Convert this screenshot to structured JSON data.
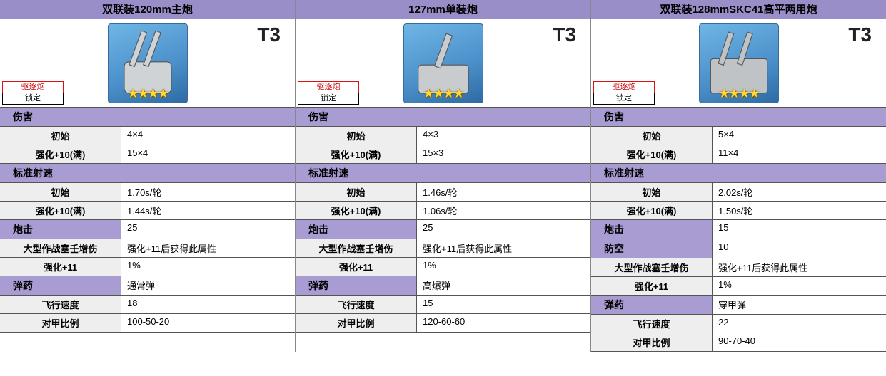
{
  "panels": [
    {
      "title": "双联装120mm主炮",
      "tier": "T3",
      "badge_type": "驱逐炮",
      "badge_lock": "锁定",
      "stars": "★★★★",
      "icon_shape": "twin",
      "sections": [
        {
          "kind": "section",
          "label": "伤害"
        },
        {
          "kind": "row",
          "key": "初始",
          "val": "4×4"
        },
        {
          "kind": "row",
          "key": "强化+10(满)",
          "val": "15×4"
        },
        {
          "kind": "section",
          "label": "标准射速"
        },
        {
          "kind": "row",
          "key": "初始",
          "val": "1.70s/轮"
        },
        {
          "kind": "row",
          "key": "强化+10(满)",
          "val": "1.44s/轮"
        },
        {
          "kind": "header",
          "key": "炮击",
          "val": "25"
        },
        {
          "kind": "row",
          "key": "大型作战塞壬增伤",
          "val": "强化+11后获得此属性"
        },
        {
          "kind": "row",
          "key": "强化+11",
          "val": "1%"
        },
        {
          "kind": "header",
          "key": "弹药",
          "val": "通常弹"
        },
        {
          "kind": "row",
          "key": "飞行速度",
          "val": "18"
        },
        {
          "kind": "row",
          "key": "对甲比例",
          "val": "100-50-20"
        }
      ]
    },
    {
      "title": "127mm单装炮",
      "tier": "T3",
      "badge_type": "驱逐炮",
      "badge_lock": "锁定",
      "stars": "★★★★",
      "icon_shape": "single",
      "sections": [
        {
          "kind": "section",
          "label": "伤害"
        },
        {
          "kind": "row",
          "key": "初始",
          "val": "4×3"
        },
        {
          "kind": "row",
          "key": "强化+10(满)",
          "val": "15×3"
        },
        {
          "kind": "section",
          "label": "标准射速"
        },
        {
          "kind": "row",
          "key": "初始",
          "val": "1.46s/轮"
        },
        {
          "kind": "row",
          "key": "强化+10(满)",
          "val": "1.06s/轮"
        },
        {
          "kind": "header",
          "key": "炮击",
          "val": "25"
        },
        {
          "kind": "row",
          "key": "大型作战塞壬增伤",
          "val": "强化+11后获得此属性"
        },
        {
          "kind": "row",
          "key": "强化+11",
          "val": "1%"
        },
        {
          "kind": "header",
          "key": "弹药",
          "val": "高爆弹"
        },
        {
          "kind": "row",
          "key": "飞行速度",
          "val": "15"
        },
        {
          "kind": "row",
          "key": "对甲比例",
          "val": "120-60-60"
        }
      ]
    },
    {
      "title": "双联装128mmSKC41高平两用炮",
      "tier": "T3",
      "badge_type": "驱逐炮",
      "badge_lock": "锁定",
      "stars": "★★★★",
      "icon_shape": "twin2",
      "sections": [
        {
          "kind": "section",
          "label": "伤害"
        },
        {
          "kind": "row",
          "key": "初始",
          "val": "5×4"
        },
        {
          "kind": "row",
          "key": "强化+10(满)",
          "val": "11×4"
        },
        {
          "kind": "section",
          "label": "标准射速"
        },
        {
          "kind": "row",
          "key": "初始",
          "val": "2.02s/轮"
        },
        {
          "kind": "row",
          "key": "强化+10(满)",
          "val": "1.50s/轮"
        },
        {
          "kind": "header",
          "key": "炮击",
          "val": "15"
        },
        {
          "kind": "header",
          "key": "防空",
          "val": "10"
        },
        {
          "kind": "row",
          "key": "大型作战塞壬增伤",
          "val": "强化+11后获得此属性"
        },
        {
          "kind": "row",
          "key": "强化+11",
          "val": "1%"
        },
        {
          "kind": "header",
          "key": "弹药",
          "val": "穿甲弹"
        },
        {
          "kind": "row",
          "key": "飞行速度",
          "val": "22"
        },
        {
          "kind": "row",
          "key": "对甲比例",
          "val": "90-70-40"
        }
      ]
    }
  ],
  "colors": {
    "header_purple": "#9a8ec9",
    "section_purple": "#a99cd3",
    "key_bg": "#eeeeee",
    "border": "#555555"
  }
}
